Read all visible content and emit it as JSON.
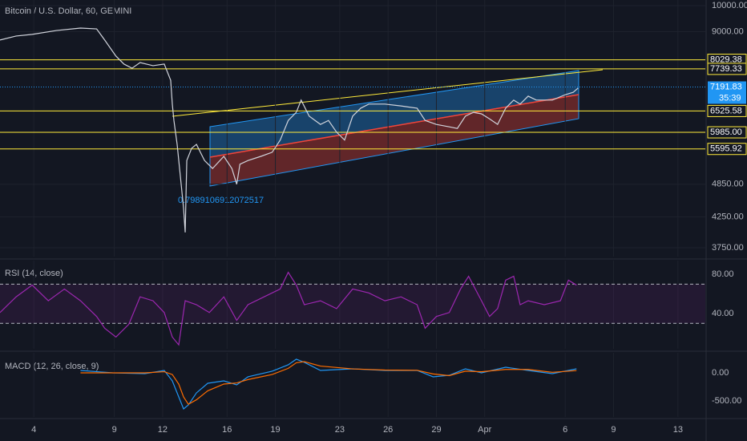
{
  "chart_data": [
    {
      "type": "line",
      "log_scale": true,
      "grid": true,
      "title": "Bitcoin / U.S. Dollar, 60, GEMINI",
      "annotation": "0.7989106912072517",
      "color": "#d1d4dc",
      "xlim": [
        1.9,
        45.7
      ],
      "xticks": [
        4,
        9,
        12,
        16,
        19,
        23,
        26,
        29,
        {
          "value": 32,
          "label": "Apr"
        },
        {
          "value": 37,
          "label": "6"
        },
        {
          "value": 40,
          "label": "9"
        },
        {
          "value": 44,
          "label": "13"
        }
      ],
      "ylim": [
        3618,
        10230
      ],
      "yticks": [
        {
          "value": 10000,
          "label": "10000.00"
        },
        {
          "value": 9000,
          "label": "9000.00"
        },
        {
          "value": 4850,
          "label": "4850.00"
        },
        {
          "value": 4250,
          "label": "4250.00"
        },
        {
          "value": 3750,
          "label": "3750.00"
        }
      ],
      "levels": [
        8029.38,
        7739.33,
        6525.58,
        {
          "value": 5985,
          "label": "5985.00"
        },
        5595.92
      ],
      "level_color": "#ffeb3b",
      "last_price": 7191.83,
      "last_price_color": "#2196f3",
      "countdown": "35:39",
      "x": [
        1.9,
        2.9,
        3.9,
        5.4,
        6.9,
        7.9,
        8.4,
        9.1,
        9.6,
        10.1,
        10.6,
        11.4,
        12.1,
        12.5,
        12.6,
        12.7,
        12.9,
        13.1,
        13.3,
        13.4,
        13.5,
        13.8,
        14.1,
        14.6,
        15.1,
        15.8,
        16.3,
        16.6,
        16.8,
        17.3,
        18.1,
        18.8,
        19.3,
        19.8,
        20.3,
        20.6,
        21.1,
        21.8,
        22.3,
        22.8,
        23.3,
        23.8,
        24.3,
        24.8,
        25.8,
        26.8,
        27.8,
        28.3,
        29.0,
        29.8,
        30.3,
        30.8,
        31.3,
        31.8,
        32.3,
        32.8,
        33.3,
        33.8,
        34.2,
        34.7,
        35.2,
        36.2,
        37.0,
        37.5,
        37.8
      ],
      "values": [
        8700,
        8840,
        8900,
        9040,
        9130,
        9100,
        8700,
        8150,
        7890,
        7760,
        7940,
        7840,
        7890,
        7390,
        6710,
        6280,
        5700,
        5010,
        4400,
        3990,
        5340,
        5610,
        5700,
        5340,
        5170,
        5430,
        5170,
        4850,
        5260,
        5340,
        5430,
        5520,
        5800,
        6280,
        6490,
        6820,
        6390,
        6180,
        6280,
        5990,
        5800,
        6390,
        6600,
        6710,
        6710,
        6660,
        6600,
        6280,
        6180,
        6120,
        6080,
        6390,
        6490,
        6450,
        6320,
        6180,
        6600,
        6820,
        6710,
        6930,
        6820,
        6820,
        6970,
        7040,
        7160
      ]
    },
    {
      "type": "line",
      "title": "RSI (14, close)",
      "color": "#9c27b0",
      "xlim": [
        1.9,
        45.7
      ],
      "ylim": [
        4,
        94
      ],
      "yticks": [
        {
          "value": 80,
          "label": "80.00"
        },
        {
          "value": 40,
          "label": "40.00"
        }
      ],
      "bands": [
        70,
        30
      ],
      "x": [
        1.9,
        2.9,
        3.9,
        4.9,
        5.9,
        6.9,
        7.9,
        8.4,
        9.1,
        9.9,
        10.6,
        11.4,
        12.1,
        12.6,
        13.0,
        13.4,
        14.1,
        14.9,
        15.8,
        16.6,
        17.3,
        18.3,
        19.3,
        19.8,
        20.3,
        20.8,
        21.8,
        22.8,
        23.8,
        24.8,
        25.8,
        26.8,
        27.8,
        28.3,
        29.0,
        29.8,
        30.5,
        31.0,
        31.8,
        32.3,
        32.8,
        33.3,
        33.8,
        34.2,
        34.7,
        35.7,
        36.7,
        37.2,
        37.7
      ],
      "values": [
        41,
        57,
        69,
        53,
        65,
        53,
        37,
        25,
        16,
        29,
        57,
        53,
        41,
        16,
        8,
        53,
        49,
        41,
        57,
        33,
        49,
        57,
        65,
        82,
        69,
        49,
        53,
        45,
        65,
        61,
        53,
        57,
        49,
        25,
        37,
        41,
        65,
        78,
        53,
        37,
        45,
        74,
        78,
        49,
        53,
        49,
        53,
        74,
        69
      ]
    },
    {
      "type": "line",
      "title": "MACD (12, 26, close, 9)",
      "xlim": [
        1.9,
        45.7
      ],
      "ylim": [
        -786,
        357
      ],
      "yticks": [
        {
          "value": 0,
          "label": "0.00"
        },
        {
          "value": -500,
          "label": "-500.00"
        }
      ],
      "x": [
        6.9,
        8.9,
        10.9,
        12.1,
        12.6,
        13.0,
        13.3,
        13.6,
        14.1,
        14.8,
        15.8,
        16.6,
        17.3,
        18.8,
        19.8,
        20.3,
        20.8,
        21.8,
        23.8,
        25.8,
        27.8,
        28.8,
        29.8,
        30.8,
        31.8,
        33.3,
        34.7,
        36.2,
        37.7
      ],
      "series": [
        {
          "color": "#2196f3",
          "values": [
            43,
            0,
            -14,
            43,
            -143,
            -429,
            -643,
            -571,
            -357,
            -186,
            -143,
            -214,
            -71,
            29,
            143,
            243,
            186,
            43,
            71,
            43,
            43,
            -71,
            -43,
            71,
            0,
            100,
            43,
            -14,
            71
          ]
        },
        {
          "color": "#ff6d00",
          "values": [
            0,
            0,
            0,
            20,
            -30,
            -200,
            -430,
            -560,
            -480,
            -320,
            -200,
            -180,
            -120,
            -30,
            80,
            180,
            200,
            120,
            70,
            50,
            45,
            -20,
            -50,
            30,
            20,
            60,
            60,
            10,
            40
          ]
        }
      ]
    }
  ]
}
